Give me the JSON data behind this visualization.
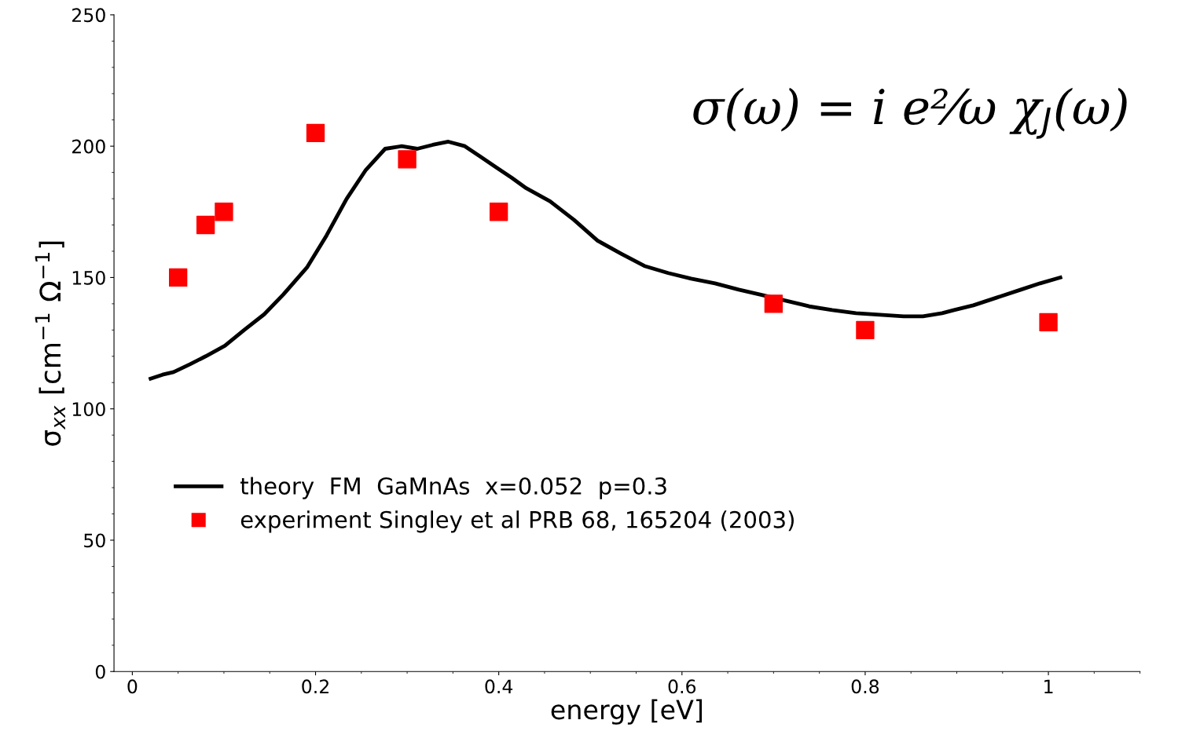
{
  "chart_data": {
    "type": "line",
    "xlabel": "energy [eV]",
    "ylabel": "σ$_{xx}$ [cm$^{−1}$ Ω$^{−1}$]",
    "xlim": [
      -0.02,
      1.1
    ],
    "ylim": [
      0,
      250
    ],
    "xticks": [
      0,
      0.2,
      0.4,
      0.6,
      0.8,
      1
    ],
    "yticks": [
      0,
      50,
      100,
      150,
      200,
      250
    ],
    "grid": false,
    "legend": "bottom left",
    "annotations": [
      "σ(ω) = i e²⁄ω χ$_{J}$(ω)"
    ],
    "series": [
      {
        "name": "theory  FM  GaMnAs  x=0.052  p=0.3",
        "color": "#000000",
        "marker": "none",
        "line_style": "solid",
        "x": [
          0.02,
          0.033,
          0.045,
          0.063,
          0.08,
          0.101,
          0.122,
          0.144,
          0.165,
          0.191,
          0.212,
          0.234,
          0.255,
          0.276,
          0.294,
          0.311,
          0.328,
          0.345,
          0.363,
          0.38,
          0.397,
          0.414,
          0.43,
          0.456,
          0.482,
          0.508,
          0.534,
          0.559,
          0.585,
          0.61,
          0.636,
          0.662,
          0.688,
          0.713,
          0.739,
          0.764,
          0.79,
          0.816,
          0.842,
          0.863,
          0.884,
          0.897,
          0.918,
          0.944,
          0.97,
          0.991,
          1.013
        ],
        "values": [
          111.5,
          113,
          114,
          117,
          120,
          124,
          130,
          136,
          143.6,
          154,
          166,
          180,
          191,
          199,
          200,
          199,
          200.5,
          201.7,
          200,
          196,
          192,
          188,
          184,
          179,
          172,
          164,
          159,
          154.4,
          151.7,
          149.6,
          147.8,
          145.4,
          143.3,
          141.2,
          139,
          137.6,
          136.4,
          135.8,
          135.2,
          135.2,
          136.4,
          137.6,
          139.4,
          142.4,
          145.4,
          147.8,
          150
        ]
      },
      {
        "name": "experiment Singley et al PRB 68, 165204 (2003)",
        "type": "scatter",
        "color": "#ff0000",
        "marker": "square",
        "x": [
          0.05,
          0.08,
          0.1,
          0.2,
          0.3,
          0.4,
          0.7,
          0.8,
          1.0
        ],
        "values": [
          150,
          170,
          175,
          205,
          195,
          175,
          140,
          130,
          133
        ]
      }
    ]
  }
}
